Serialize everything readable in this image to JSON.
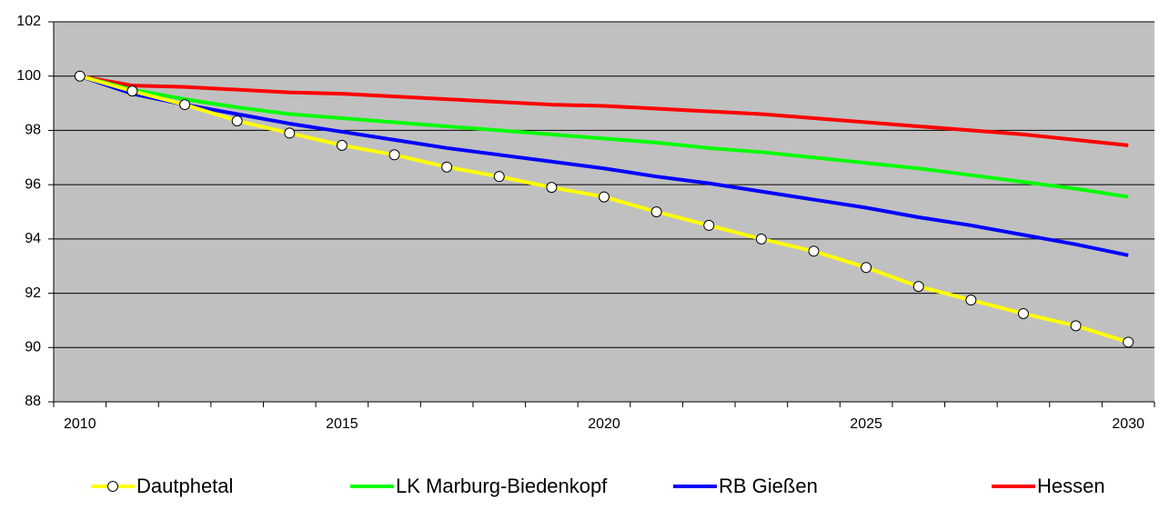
{
  "chart_data": {
    "type": "line",
    "x": [
      2010,
      2011,
      2012,
      2013,
      2014,
      2015,
      2016,
      2017,
      2018,
      2019,
      2020,
      2021,
      2022,
      2023,
      2024,
      2025,
      2026,
      2027,
      2028,
      2029,
      2030
    ],
    "xlim": [
      2009.5,
      2030.5
    ],
    "xticks": [
      2010,
      2015,
      2020,
      2025,
      2030
    ],
    "ylim": [
      88,
      102
    ],
    "yticks": [
      88,
      90,
      92,
      94,
      96,
      98,
      100,
      102
    ],
    "grid": true,
    "legend": "bottom",
    "series": [
      {
        "name": "Dautphetal",
        "color": "#ffff00",
        "markers": true,
        "values": [
          100,
          99.45,
          98.95,
          98.35,
          97.9,
          97.45,
          97.1,
          96.65,
          96.3,
          95.9,
          95.55,
          95.0,
          94.5,
          94.0,
          93.55,
          92.95,
          92.25,
          91.75,
          91.25,
          90.8,
          90.2
        ]
      },
      {
        "name": "LK Marburg-Biedenkopf",
        "color": "#00ff00",
        "values": [
          100,
          99.5,
          99.15,
          98.85,
          98.6,
          98.45,
          98.3,
          98.15,
          98.0,
          97.85,
          97.7,
          97.55,
          97.35,
          97.2,
          97.0,
          96.8,
          96.6,
          96.35,
          96.1,
          95.85,
          95.55
        ]
      },
      {
        "name": "RB Gießen",
        "color": "#0000ff",
        "values": [
          100,
          99.35,
          98.95,
          98.6,
          98.25,
          97.95,
          97.65,
          97.35,
          97.1,
          96.85,
          96.6,
          96.3,
          96.05,
          95.75,
          95.45,
          95.15,
          94.8,
          94.5,
          94.15,
          93.8,
          93.4
        ]
      },
      {
        "name": "Hessen",
        "color": "#ff0000",
        "values": [
          100,
          99.65,
          99.6,
          99.5,
          99.4,
          99.35,
          99.25,
          99.15,
          99.05,
          98.95,
          98.9,
          98.8,
          98.7,
          98.6,
          98.45,
          98.3,
          98.15,
          98.0,
          97.85,
          97.65,
          97.45
        ]
      }
    ]
  }
}
